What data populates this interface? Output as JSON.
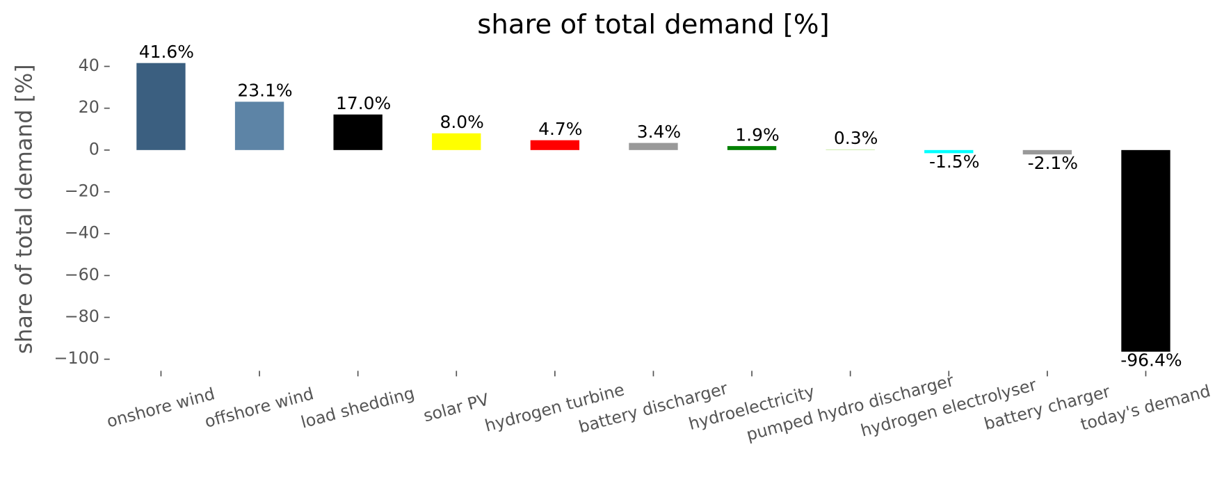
{
  "chart_data": {
    "type": "bar",
    "title": "share of total demand [%]",
    "y_label": "share of total demand [%]",
    "categories": [
      "onshore wind",
      "offshore wind",
      "load shedding",
      "solar PV",
      "hydrogen turbine",
      "battery discharger",
      "hydroelectricity",
      "pumped hydro discharger",
      "hydrogen electrolyser",
      "battery charger",
      "today's demand"
    ],
    "values": [
      41.6,
      23.1,
      17.0,
      8.0,
      4.7,
      3.4,
      1.9,
      0.3,
      -1.5,
      -2.1,
      -96.4
    ],
    "value_labels": [
      "41.6%",
      "23.1%",
      "17.0%",
      "8.0%",
      "4.7%",
      "3.4%",
      "1.9%",
      "0.3%",
      "-1.5%",
      "-2.1%",
      "-96.4%"
    ],
    "colors": [
      "#3b5f80",
      "#5d84a6",
      "#000000",
      "#ffff00",
      "#ff0000",
      "#999999",
      "#008000",
      "#c8eba0",
      "#00ffff",
      "#999999",
      "#000000"
    ],
    "ylim": [
      -103.3,
      48.5
    ],
    "yticks": [
      {
        "value": -100,
        "label": "−100"
      },
      {
        "value": -80,
        "label": "−80"
      },
      {
        "value": -60,
        "label": "−60"
      },
      {
        "value": -40,
        "label": "−40"
      },
      {
        "value": -20,
        "label": "−20"
      },
      0,
      20,
      40
    ],
    "grid": false
  }
}
